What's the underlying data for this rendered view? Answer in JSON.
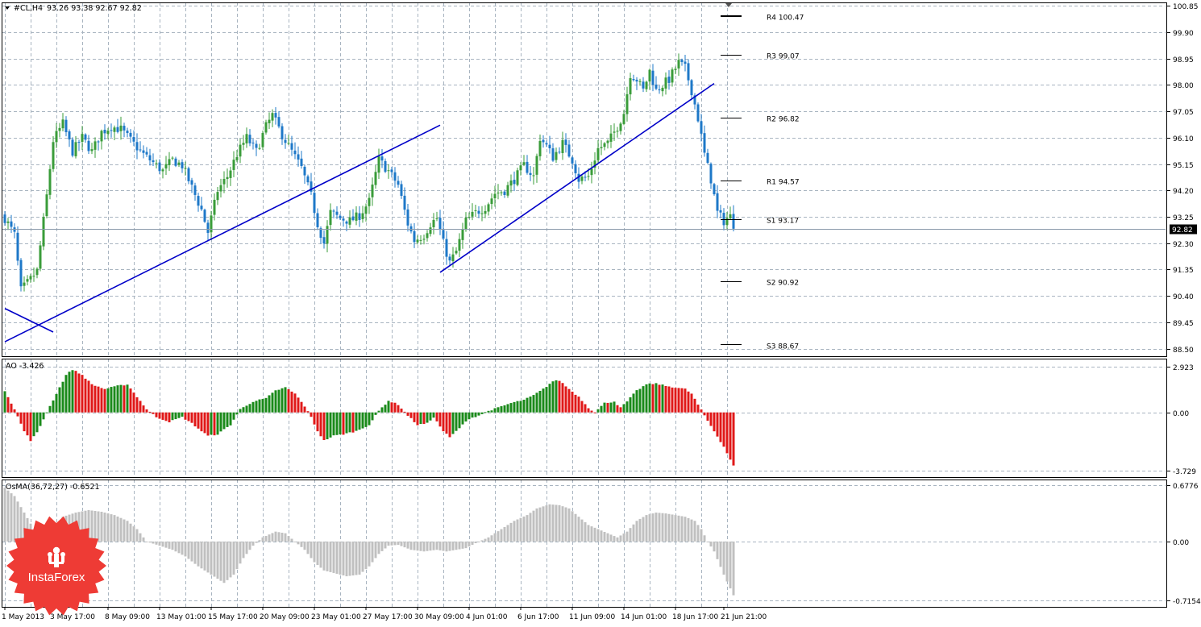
{
  "header": {
    "symbol": "#CL,H4",
    "ohlc": "93.26 93.38 92.67 92.82"
  },
  "chart_data": {
    "type": "candlestick",
    "price_axis": {
      "ticks": [
        "100.85",
        "99.90",
        "98.95",
        "98.00",
        "97.05",
        "96.10",
        "95.15",
        "94.20",
        "93.25",
        "92.30",
        "91.35",
        "90.40",
        "89.45",
        "88.50"
      ],
      "ylim": [
        88.23,
        100.97
      ],
      "current_price": 92.82,
      "current_label": "92.82"
    },
    "x_axis": {
      "tick_labels": [
        "1 May 2013",
        "3 May 17:00",
        "8 May 09:00",
        "13 May 01:00",
        "15 May 17:00",
        "20 May 09:00",
        "23 May 01:00",
        "27 May 17:00",
        "30 May 09:00",
        "4 Jun 01:00",
        "6 Jun 17:00",
        "11 Jun 09:00",
        "14 Jun 01:00",
        "18 Jun 17:00",
        "21 Jun 21:00"
      ],
      "bar_count": 227,
      "tick_bars": [
        0,
        15,
        32,
        48,
        64,
        80,
        96,
        112,
        128,
        144,
        160,
        176,
        192,
        208,
        223
      ]
    },
    "close_anchors": [
      [
        0,
        93.2
      ],
      [
        3,
        92.6
      ],
      [
        5,
        90.6
      ],
      [
        8,
        91.0
      ],
      [
        10,
        91.3
      ],
      [
        13,
        94.0
      ],
      [
        15,
        96.0
      ],
      [
        18,
        96.6
      ],
      [
        21,
        95.6
      ],
      [
        24,
        96.1
      ],
      [
        27,
        95.6
      ],
      [
        30,
        96.3
      ],
      [
        33,
        96.5
      ],
      [
        36,
        96.4
      ],
      [
        39,
        96.0
      ],
      [
        43,
        95.5
      ],
      [
        46,
        95.2
      ],
      [
        49,
        94.9
      ],
      [
        52,
        95.3
      ],
      [
        55,
        95.1
      ],
      [
        58,
        94.3
      ],
      [
        61,
        93.5
      ],
      [
        63,
        92.7
      ],
      [
        66,
        94.2
      ],
      [
        69,
        94.7
      ],
      [
        72,
        95.5
      ],
      [
        75,
        96.1
      ],
      [
        78,
        95.6
      ],
      [
        81,
        96.5
      ],
      [
        83,
        96.9
      ],
      [
        86,
        96.2
      ],
      [
        89,
        95.6
      ],
      [
        92,
        95.0
      ],
      [
        95,
        94.0
      ],
      [
        97,
        93.0
      ],
      [
        99,
        92.3
      ],
      [
        101,
        93.4
      ],
      [
        104,
        93.2
      ],
      [
        107,
        93.1
      ],
      [
        110,
        93.3
      ],
      [
        113,
        93.8
      ],
      [
        116,
        95.3
      ],
      [
        119,
        94.9
      ],
      [
        122,
        94.4
      ],
      [
        125,
        93.0
      ],
      [
        127,
        92.4
      ],
      [
        130,
        92.6
      ],
      [
        132,
        93.0
      ],
      [
        134,
        93.2
      ],
      [
        136,
        92.3
      ],
      [
        138,
        91.6
      ],
      [
        140,
        92.0
      ],
      [
        143,
        93.1
      ],
      [
        146,
        93.4
      ],
      [
        149,
        93.6
      ],
      [
        152,
        94.1
      ],
      [
        155,
        94.2
      ],
      [
        158,
        94.6
      ],
      [
        161,
        95.1
      ],
      [
        164,
        94.7
      ],
      [
        166,
        96.1
      ],
      [
        168,
        95.8
      ],
      [
        170,
        95.4
      ],
      [
        173,
        95.9
      ],
      [
        176,
        95.3
      ],
      [
        178,
        94.6
      ],
      [
        181,
        94.7
      ],
      [
        184,
        95.7
      ],
      [
        187,
        95.9
      ],
      [
        190,
        96.5
      ],
      [
        192,
        97.0
      ],
      [
        194,
        98.4
      ],
      [
        196,
        98.2
      ],
      [
        198,
        97.8
      ],
      [
        200,
        98.5
      ],
      [
        202,
        97.8
      ],
      [
        204,
        98.0
      ],
      [
        206,
        98.2
      ],
      [
        209,
        98.8
      ],
      [
        211,
        98.6
      ],
      [
        213,
        97.8
      ],
      [
        215,
        96.8
      ],
      [
        217,
        95.5
      ],
      [
        219,
        94.6
      ],
      [
        221,
        93.4
      ],
      [
        223,
        93.1
      ],
      [
        224,
        93.2
      ],
      [
        225,
        93.26
      ],
      [
        226,
        92.82
      ]
    ],
    "pivot_levels": [
      {
        "name": "R4",
        "value": 100.47,
        "label": "R4 100.47"
      },
      {
        "name": "R3",
        "value": 99.07,
        "label": "R3 99.07"
      },
      {
        "name": "R2",
        "value": 96.82,
        "label": "R2 96.82"
      },
      {
        "name": "R1",
        "value": 94.57,
        "label": "R1 94.57"
      },
      {
        "name": "S1",
        "value": 93.17,
        "label": "S1 93.17"
      },
      {
        "name": "S2",
        "value": 90.92,
        "label": "S2 90.92"
      },
      {
        "name": "S3",
        "value": 88.67,
        "label": "S3 88.67"
      }
    ],
    "trendlines": [
      {
        "name": "short-down-line",
        "x1": 0,
        "y1": 89.95,
        "x2": 15,
        "y2": 89.1
      },
      {
        "name": "long-trendline",
        "x1": 0,
        "y1": 88.75,
        "x2": 135,
        "y2": 96.55
      },
      {
        "name": "upper-trendline",
        "x1": 135,
        "y1": 91.25,
        "x2": 220,
        "y2": 98.05
      }
    ],
    "colors": {
      "bull": "#3a9c3a",
      "bear": "#1e78c8",
      "trendline": "#0000c8",
      "ao_up": "#1a8a1a",
      "ao_down": "#e01818",
      "osma": "#c0c0c0",
      "grid": "#a8b4c0"
    }
  },
  "ao_panel": {
    "label": "AO -3.426",
    "ticks": [
      "2.923",
      "0.00",
      "-3.729"
    ],
    "ylim": [
      -4.15,
      3.45
    ],
    "anchors": [
      [
        0,
        1.4
      ],
      [
        3,
        0.2
      ],
      [
        6,
        -1.2
      ],
      [
        8,
        -1.8
      ],
      [
        10,
        -1.3
      ],
      [
        13,
        0.0
      ],
      [
        16,
        1.2
      ],
      [
        19,
        2.4
      ],
      [
        21,
        2.75
      ],
      [
        24,
        2.4
      ],
      [
        27,
        1.8
      ],
      [
        31,
        1.5
      ],
      [
        35,
        1.7
      ],
      [
        38,
        1.8
      ],
      [
        41,
        1.0
      ],
      [
        44,
        0.2
      ],
      [
        47,
        -0.3
      ],
      [
        51,
        -0.6
      ],
      [
        55,
        -0.3
      ],
      [
        58,
        -0.7
      ],
      [
        61,
        -1.2
      ],
      [
        63,
        -1.5
      ],
      [
        66,
        -1.4
      ],
      [
        70,
        -0.8
      ],
      [
        73,
        0.2
      ],
      [
        77,
        0.7
      ],
      [
        81,
        0.9
      ],
      [
        84,
        1.4
      ],
      [
        87,
        1.6
      ],
      [
        90,
        1.2
      ],
      [
        93,
        0.4
      ],
      [
        95,
        -0.3
      ],
      [
        97,
        -1.2
      ],
      [
        99,
        -1.8
      ],
      [
        102,
        -1.5
      ],
      [
        105,
        -1.4
      ],
      [
        109,
        -1.2
      ],
      [
        113,
        -0.8
      ],
      [
        116,
        0.1
      ],
      [
        119,
        0.75
      ],
      [
        122,
        0.5
      ],
      [
        125,
        -0.2
      ],
      [
        128,
        -0.8
      ],
      [
        131,
        -0.7
      ],
      [
        133,
        -0.3
      ],
      [
        136,
        -1.2
      ],
      [
        138,
        -1.6
      ],
      [
        141,
        -1.0
      ],
      [
        144,
        -0.4
      ],
      [
        147,
        -0.2
      ],
      [
        150,
        0.1
      ],
      [
        153,
        0.3
      ],
      [
        157,
        0.6
      ],
      [
        161,
        0.8
      ],
      [
        164,
        1.1
      ],
      [
        167,
        1.5
      ],
      [
        170,
        2.0
      ],
      [
        172,
        2.05
      ],
      [
        175,
        1.5
      ],
      [
        178,
        1.0
      ],
      [
        181,
        0.3
      ],
      [
        183,
        0.0
      ],
      [
        186,
        0.6
      ],
      [
        189,
        0.7
      ],
      [
        191,
        0.3
      ],
      [
        193,
        0.7
      ],
      [
        196,
        1.4
      ],
      [
        199,
        1.8
      ],
      [
        202,
        1.85
      ],
      [
        205,
        1.7
      ],
      [
        208,
        1.6
      ],
      [
        211,
        1.5
      ],
      [
        213,
        1.2
      ],
      [
        215,
        0.5
      ],
      [
        217,
        -0.2
      ],
      [
        220,
        -1.2
      ],
      [
        223,
        -2.2
      ],
      [
        226,
        -3.43
      ]
    ]
  },
  "osma_panel": {
    "label": "OsMA(36,72,27) -0.6521",
    "ticks": [
      "0.6776",
      "0.00",
      "-0.7154"
    ],
    "ylim": [
      -0.79,
      0.75
    ],
    "anchors": [
      [
        0,
        0.65
      ],
      [
        3,
        0.55
      ],
      [
        6,
        0.35
      ],
      [
        9,
        0.15
      ],
      [
        12,
        0.05
      ],
      [
        15,
        0.15
      ],
      [
        18,
        0.3
      ],
      [
        22,
        0.35
      ],
      [
        26,
        0.38
      ],
      [
        30,
        0.36
      ],
      [
        34,
        0.32
      ],
      [
        38,
        0.25
      ],
      [
        41,
        0.15
      ],
      [
        44,
        0.0
      ],
      [
        48,
        -0.05
      ],
      [
        52,
        -0.1
      ],
      [
        56,
        -0.18
      ],
      [
        60,
        -0.3
      ],
      [
        64,
        -0.4
      ],
      [
        68,
        -0.5
      ],
      [
        71,
        -0.4
      ],
      [
        74,
        -0.2
      ],
      [
        77,
        -0.05
      ],
      [
        80,
        0.05
      ],
      [
        84,
        0.12
      ],
      [
        87,
        0.1
      ],
      [
        90,
        0.0
      ],
      [
        93,
        -0.1
      ],
      [
        96,
        -0.25
      ],
      [
        99,
        -0.35
      ],
      [
        102,
        -0.38
      ],
      [
        106,
        -0.42
      ],
      [
        110,
        -0.4
      ],
      [
        113,
        -0.3
      ],
      [
        116,
        -0.15
      ],
      [
        119,
        -0.05
      ],
      [
        122,
        -0.04
      ],
      [
        126,
        -0.1
      ],
      [
        130,
        -0.12
      ],
      [
        134,
        -0.1
      ],
      [
        137,
        -0.12
      ],
      [
        140,
        -0.1
      ],
      [
        143,
        -0.08
      ],
      [
        146,
        -0.02
      ],
      [
        150,
        0.05
      ],
      [
        154,
        0.15
      ],
      [
        158,
        0.25
      ],
      [
        162,
        0.32
      ],
      [
        165,
        0.4
      ],
      [
        169,
        0.45
      ],
      [
        172,
        0.44
      ],
      [
        175,
        0.4
      ],
      [
        178,
        0.3
      ],
      [
        181,
        0.2
      ],
      [
        184,
        0.15
      ],
      [
        187,
        0.1
      ],
      [
        190,
        0.05
      ],
      [
        193,
        0.12
      ],
      [
        196,
        0.25
      ],
      [
        199,
        0.32
      ],
      [
        202,
        0.35
      ],
      [
        205,
        0.34
      ],
      [
        208,
        0.32
      ],
      [
        211,
        0.3
      ],
      [
        214,
        0.25
      ],
      [
        216,
        0.15
      ],
      [
        218,
        0.0
      ],
      [
        220,
        -0.12
      ],
      [
        223,
        -0.4
      ],
      [
        226,
        -0.65
      ]
    ]
  },
  "logo": {
    "text": "InstaForex"
  }
}
